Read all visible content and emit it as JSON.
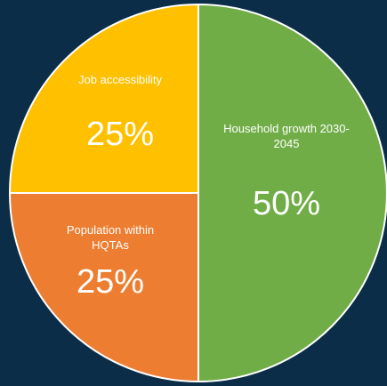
{
  "chart_data": {
    "type": "pie",
    "categories": [
      "Household growth 2030-2045",
      "Population within HQTAs",
      "Job accessibility"
    ],
    "values": [
      50,
      25,
      25
    ],
    "value_labels": [
      "50%",
      "25%",
      "25%"
    ],
    "colors": [
      "#70ad47",
      "#ed7d31",
      "#ffc000"
    ]
  }
}
